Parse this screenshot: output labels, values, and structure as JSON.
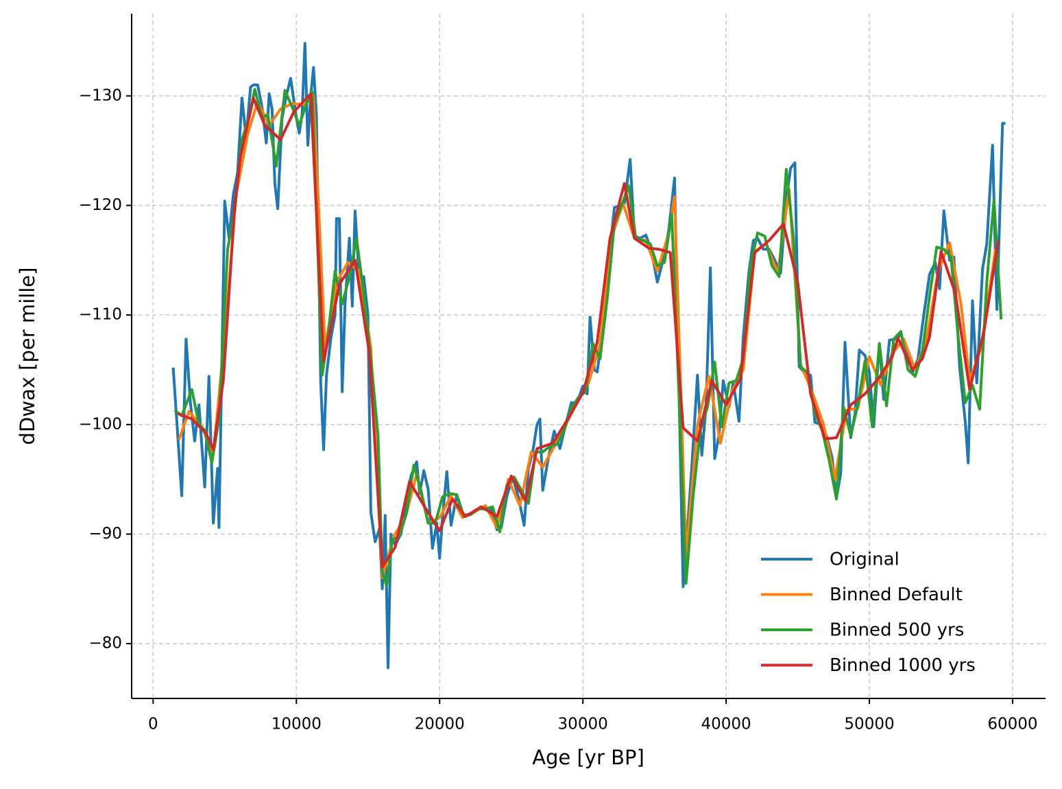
{
  "chart_data": {
    "type": "line",
    "xlabel": "Age [yr BP]",
    "ylabel": "dDwax [per mille]",
    "xlim": [
      -1500,
      62300
    ],
    "ylim": [
      -75,
      -137.5
    ],
    "xticks": [
      0,
      10000,
      20000,
      30000,
      40000,
      50000,
      60000
    ],
    "yticks": [
      {
        "value": -130,
        "label": "−130"
      },
      {
        "value": -120,
        "label": "−120"
      },
      {
        "value": -110,
        "label": "−110"
      },
      {
        "value": -100,
        "label": "−100"
      },
      {
        "value": -90,
        "label": "−90"
      },
      {
        "value": -80,
        "label": "−80"
      }
    ],
    "grid": true,
    "legend": "lower right",
    "series": [
      {
        "name": "Original",
        "color": "#1f77b4",
        "x": [
          1400,
          1800,
          2000,
          2300,
          2600,
          2900,
          3200,
          3600,
          3900,
          4200,
          4500,
          4600,
          5000,
          5300,
          5600,
          5900,
          6200,
          6500,
          6800,
          7000,
          7300,
          7600,
          7900,
          8100,
          8300,
          8500,
          8700,
          9000,
          9300,
          9600,
          10000,
          10200,
          10400,
          10600,
          10800,
          11000,
          11200,
          11400,
          11700,
          11900,
          12100,
          12400,
          12700,
          12800,
          13000,
          13200,
          13400,
          13700,
          13900,
          14100,
          14400,
          14700,
          15000,
          15200,
          15500,
          15800,
          16000,
          16200,
          16400,
          16600,
          16900,
          17300,
          17600,
          18000,
          18400,
          18600,
          18900,
          19200,
          19500,
          19800,
          20000,
          20200,
          20500,
          20800,
          21200,
          21600,
          22000,
          22400,
          22800,
          23200,
          23600,
          24000,
          24300,
          24700,
          25100,
          25500,
          25900,
          26200,
          26500,
          26800,
          27000,
          27200,
          27600,
          28000,
          28400,
          28800,
          29200,
          29600,
          30000,
          30300,
          30500,
          30800,
          31000,
          31300,
          31600,
          31900,
          32200,
          32600,
          32900,
          33300,
          33600,
          34000,
          34400,
          34800,
          35200,
          35600,
          36000,
          36400,
          36700,
          37000,
          37300,
          37600,
          38000,
          38300,
          38600,
          38900,
          39200,
          39500,
          39800,
          40200,
          40500,
          40900,
          41200,
          41600,
          41900,
          42200,
          42600,
          43000,
          43400,
          43800,
          44200,
          44500,
          44800,
          45100,
          45500,
          45900,
          46200,
          46600,
          47000,
          47400,
          47700,
          48000,
          48300,
          48700,
          49000,
          49300,
          49700,
          50000,
          50300,
          50700,
          51000,
          51400,
          51800,
          52200,
          52600,
          53000,
          53400,
          53800,
          54200,
          54600,
          54900,
          55200,
          55600,
          55900,
          56300,
          56700,
          56900,
          57200,
          57500,
          57900,
          58200,
          58600,
          58900,
          59300,
          59500
        ],
        "values": [
          -105.2,
          -97.5,
          -93.5,
          -107.8,
          -102,
          -98.5,
          -101.8,
          -94.3,
          -104.4,
          -91,
          -96,
          -90.6,
          -120.4,
          -117,
          -121,
          -123,
          -129.8,
          -126.2,
          -130.8,
          -131,
          -131,
          -129,
          -125.7,
          -130.2,
          -128.8,
          -122,
          -119.7,
          -128,
          -130,
          -131.6,
          -128,
          -126.6,
          -128.3,
          -134.8,
          -125.5,
          -130,
          -132.6,
          -128.3,
          -103.8,
          -97.7,
          -104.5,
          -107.8,
          -110,
          -118.8,
          -118.8,
          -103,
          -111,
          -117,
          -110.8,
          -119.5,
          -113,
          -113.5,
          -110,
          -92,
          -89.3,
          -90.5,
          -85,
          -91.7,
          -77.8,
          -90,
          -89,
          -90,
          -92.2,
          -95.3,
          -96.6,
          -93.7,
          -95.8,
          -94.1,
          -88.7,
          -91,
          -87.8,
          -91.5,
          -95.7,
          -90.8,
          -93.6,
          -91.7,
          -91.8,
          -92,
          -92.4,
          -92.4,
          -92.2,
          -90.4,
          -90.6,
          -93.5,
          -95.2,
          -93.4,
          -90.8,
          -96,
          -97.5,
          -100,
          -100.5,
          -94,
          -97,
          -99.4,
          -97.8,
          -100,
          -102,
          -102,
          -103.5,
          -102.8,
          -109.8,
          -105,
          -104.8,
          -107.7,
          -112.4,
          -116,
          -119.8,
          -120,
          -120.2,
          -124.2,
          -117.2,
          -117,
          -117.3,
          -115.8,
          -113,
          -115,
          -117.8,
          -122.5,
          -103.8,
          -85.2,
          -90.5,
          -96,
          -104.5,
          -97.2,
          -101.6,
          -114.3,
          -96.9,
          -99,
          -104,
          -101.6,
          -103.8,
          -100.3,
          -108,
          -114,
          -116.8,
          -117,
          -116,
          -116,
          -115,
          -113.8,
          -120.4,
          -123.4,
          -123.9,
          -105.3,
          -104.7,
          -104.5,
          -100.2,
          -100,
          -99,
          -97,
          -93.3,
          -95.5,
          -107.5,
          -98.8,
          -101,
          -106.8,
          -106.3,
          -104.8,
          -99.8,
          -107.4,
          -102.3,
          -107.7,
          -107.8,
          -108.2,
          -107,
          -104.7,
          -106,
          -110,
          -113.7,
          -114.8,
          -112.4,
          -119.5,
          -115,
          -115.3,
          -105.3,
          -100.2,
          -96.5,
          -111.3,
          -103.8,
          -114.2,
          -116.5,
          -125.5,
          -110.5,
          -127.5,
          -127.5
        ]
      },
      {
        "name": "Binned Default",
        "color": "#ff7f0e",
        "x": [
          1800,
          2500,
          3400,
          4200,
          5000,
          5800,
          6600,
          7300,
          8100,
          8900,
          9700,
          10600,
          11200,
          12000,
          12800,
          13600,
          14400,
          15200,
          16000,
          16800,
          17600,
          18400,
          19200,
          20000,
          20800,
          21600,
          22400,
          23200,
          24000,
          24800,
          25600,
          26400,
          27200,
          28000,
          28800,
          29600,
          30400,
          31200,
          32000,
          32800,
          33600,
          34400,
          35200,
          36000,
          36400,
          37200,
          38000,
          38800,
          39600,
          40400,
          41200,
          42000,
          42800,
          43600,
          44400,
          45200,
          46000,
          46800,
          47600,
          48400,
          49200,
          50000,
          50800,
          51600,
          52400,
          53200,
          54000,
          54800,
          55600,
          56400,
          57000,
          57800,
          58800
        ],
        "values": [
          -98.6,
          -101.2,
          -99.8,
          -97.3,
          -108,
          -121,
          -126.5,
          -129.5,
          -127.3,
          -128.8,
          -129.3,
          -129.2,
          -130,
          -107,
          -113,
          -114.8,
          -114,
          -107,
          -86,
          -89.8,
          -91.5,
          -95.5,
          -91,
          -91.5,
          -93.5,
          -91.5,
          -92,
          -92.6,
          -90.6,
          -95,
          -92.6,
          -97.5,
          -96.1,
          -98,
          -100,
          -102,
          -103.8,
          -107.3,
          -117,
          -120.2,
          -117,
          -116.8,
          -114,
          -117.5,
          -120.8,
          -88,
          -100,
          -104.4,
          -98.3,
          -103,
          -105,
          -115.8,
          -116.5,
          -113.8,
          -121.5,
          -105.5,
          -103,
          -100,
          -95,
          -101.3,
          -101.5,
          -106.2,
          -103.6,
          -106.5,
          -107.8,
          -105,
          -107.8,
          -114,
          -116.6,
          -111,
          -104,
          -107,
          -116
        ]
      },
      {
        "name": "Binned 500 yrs",
        "color": "#2ca02c",
        "x": [
          1500,
          2000,
          2700,
          3200,
          3600,
          4100,
          4600,
          5200,
          5700,
          6200,
          6700,
          7100,
          7600,
          8000,
          8600,
          9200,
          9700,
          10200,
          10700,
          11100,
          11800,
          12200,
          12700,
          13200,
          13700,
          14200,
          14700,
          15200,
          15700,
          16000,
          16300,
          16700,
          17200,
          17700,
          18200,
          18700,
          19200,
          19700,
          20200,
          20700,
          21200,
          21700,
          22200,
          22700,
          23200,
          23700,
          24200,
          24700,
          25200,
          25700,
          26200,
          26700,
          27200,
          27700,
          28200,
          28700,
          29200,
          29700,
          30200,
          30700,
          31200,
          31700,
          32200,
          32700,
          33200,
          33700,
          34200,
          34700,
          35200,
          35700,
          36200,
          36700,
          37200,
          37700,
          38200,
          38700,
          39200,
          39700,
          40200,
          40700,
          41200,
          41700,
          42200,
          42700,
          43200,
          43700,
          44200,
          44700,
          45200,
          45700,
          46200,
          46700,
          47200,
          47700,
          48200,
          48700,
          49200,
          49700,
          50200,
          50700,
          51200,
          51700,
          52200,
          52700,
          53200,
          53700,
          54200,
          54700,
          55200,
          55700,
          56200,
          56700,
          57200,
          57700,
          58200,
          58700,
          59200
        ],
        "values": [
          -101.3,
          -100.8,
          -103.2,
          -100,
          -99.5,
          -96.5,
          -100.5,
          -116,
          -119.5,
          -126,
          -128,
          -130.6,
          -128,
          -128.3,
          -123.6,
          -130.5,
          -129,
          -127.3,
          -129.3,
          -130.4,
          -104.5,
          -108,
          -114,
          -111,
          -113.5,
          -117,
          -112,
          -106,
          -99,
          -86.5,
          -85.3,
          -89.5,
          -89.8,
          -92,
          -96.3,
          -94,
          -91,
          -91,
          -93.4,
          -93.7,
          -93.6,
          -91.6,
          -91.8,
          -92.3,
          -92.3,
          -92.5,
          -90.2,
          -94.5,
          -95.2,
          -94,
          -92.8,
          -97.5,
          -97.5,
          -98,
          -98.2,
          -99.5,
          -101.5,
          -102.5,
          -103,
          -107.4,
          -106,
          -111.5,
          -118.3,
          -120,
          -121.8,
          -117,
          -116.8,
          -116.5,
          -114.5,
          -114.8,
          -119.2,
          -103,
          -85.5,
          -93.5,
          -99.5,
          -101.6,
          -105.7,
          -99.8,
          -103.8,
          -104,
          -106,
          -114.5,
          -117.5,
          -117.2,
          -114.5,
          -113.5,
          -123.3,
          -117,
          -105.3,
          -104.7,
          -101,
          -99.5,
          -96.7,
          -93.2,
          -101.6,
          -99,
          -101.8,
          -105.8,
          -99.8,
          -107.4,
          -101.7,
          -107.8,
          -108.5,
          -105,
          -104.4,
          -106.6,
          -111.7,
          -116.2,
          -116,
          -115.3,
          -108,
          -102,
          -103.6,
          -101.4,
          -113,
          -120.5,
          -109.6
        ]
      },
      {
        "name": "Binned 1000 yrs",
        "color": "#d62728",
        "x": [
          1700,
          2700,
          3700,
          4200,
          4900,
          5700,
          6100,
          7000,
          7800,
          8900,
          9800,
          11000,
          11900,
          12500,
          13000,
          14100,
          15100,
          16000,
          16900,
          17900,
          19000,
          20000,
          20900,
          21800,
          22900,
          24000,
          25000,
          26000,
          26800,
          27900,
          29000,
          30000,
          31000,
          31900,
          32900,
          33600,
          34600,
          35300,
          36100,
          37000,
          38000,
          39000,
          40000,
          41000,
          42000,
          43000,
          44000,
          45000,
          45900,
          46900,
          47700,
          48700,
          49700,
          50700,
          51600,
          52000,
          53000,
          53700,
          54200,
          55000,
          56000,
          57000,
          58000,
          59000
        ],
        "values": [
          -101,
          -100.5,
          -99.2,
          -97.7,
          -104,
          -120,
          -124.5,
          -129.8,
          -127.3,
          -126,
          -128.5,
          -130.2,
          -105.8,
          -109.5,
          -112.8,
          -115,
          -106.5,
          -87,
          -88.8,
          -94.8,
          -92.4,
          -90.3,
          -93.2,
          -91.6,
          -92.5,
          -91.6,
          -95.3,
          -93,
          -97.8,
          -98.3,
          -100.6,
          -102.9,
          -107.5,
          -117,
          -122,
          -117,
          -116.1,
          -116,
          -115.7,
          -99.7,
          -98.5,
          -104,
          -101.8,
          -104.2,
          -115.7,
          -116.8,
          -118.3,
          -113,
          -102.8,
          -98.7,
          -98.8,
          -101.8,
          -102.8,
          -104.3,
          -106.2,
          -107.9,
          -105,
          -106,
          -108,
          -115.8,
          -112,
          -103.2,
          -108.5,
          -116.8
        ]
      }
    ]
  }
}
